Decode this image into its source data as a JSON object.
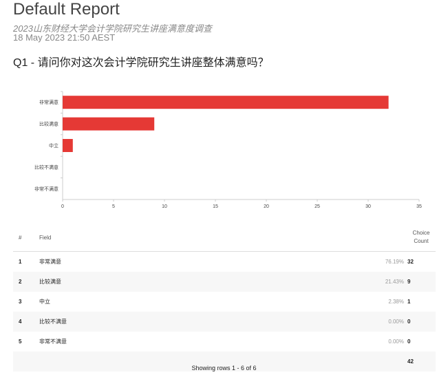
{
  "header": {
    "title": "Default Report",
    "subtitle": "2023山东财经大学会计学院研究生讲座满意度调查",
    "date": "18 May 2023 21:50 AEST"
  },
  "question": "Q1 - 请问你对这次会计学院研究生讲座整体满意吗？",
  "chart_data": {
    "type": "bar",
    "orientation": "horizontal",
    "categories": [
      "非常满意",
      "比较满意",
      "中立",
      "比较不满意",
      "非常不满意"
    ],
    "values": [
      32,
      9,
      1,
      0,
      0
    ],
    "xlim": [
      0,
      35
    ],
    "xticks": [
      0,
      5,
      10,
      15,
      20,
      25,
      30,
      35
    ],
    "color": "#e53935",
    "grid": false
  },
  "table": {
    "headers": {
      "num": "#",
      "field": "Field",
      "choice": "Choice",
      "count": "Count"
    },
    "rows": [
      {
        "n": "1",
        "field": "非常满意",
        "pct": "76.19%",
        "count": "32"
      },
      {
        "n": "2",
        "field": "比较满意",
        "pct": "21.43%",
        "count": "9"
      },
      {
        "n": "3",
        "field": "中立",
        "pct": "2.38%",
        "count": "1"
      },
      {
        "n": "4",
        "field": "比较不满意",
        "pct": "0.00%",
        "count": "0"
      },
      {
        "n": "5",
        "field": "非常不满意",
        "pct": "0.00%",
        "count": "0"
      }
    ],
    "total": "42"
  },
  "footer": "Showing rows 1 - 6 of 6"
}
